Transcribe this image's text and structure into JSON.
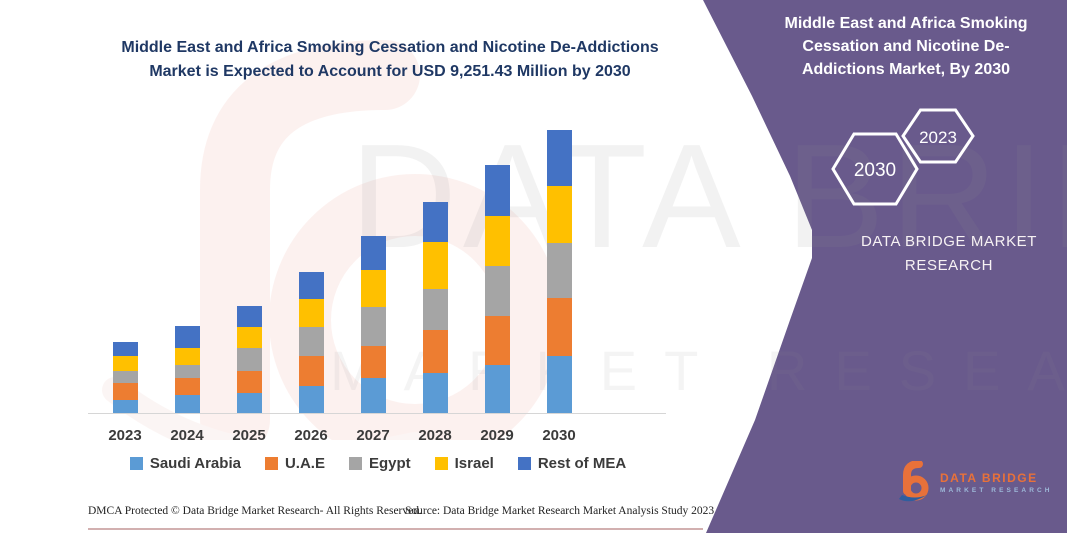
{
  "chart_data": {
    "type": "bar",
    "stacked": true,
    "title": "Middle East and Africa Smoking Cessation and Nicotine De-Addictions Market is Expected to Account for USD 9,251.43 Million by 2030",
    "title_line1": "Middle East and Africa Smoking Cessation and Nicotine De-Addictions",
    "title_line2": "Market is Expected to Account for USD 9,251.43 Million by 2030",
    "unit": "USD Million",
    "categories": [
      "2023",
      "2024",
      "2025",
      "2026",
      "2027",
      "2028",
      "2029",
      "2030"
    ],
    "series": [
      {
        "name": "Saudi Arabia",
        "color": "#5B9BD5",
        "values": [
          430,
          590,
          660,
          890,
          1150,
          1315,
          1580,
          1875
        ]
      },
      {
        "name": "U.A.E",
        "color": "#ED7D31",
        "values": [
          560,
          560,
          725,
          990,
          1055,
          1415,
          1580,
          1875
        ]
      },
      {
        "name": "Egypt",
        "color": "#A5A5A5",
        "values": [
          395,
          430,
          755,
          920,
          1250,
          1315,
          1645,
          1810
        ]
      },
      {
        "name": "Israel",
        "color": "#FFC000",
        "values": [
          495,
          560,
          660,
          920,
          1220,
          1545,
          1645,
          1875
        ]
      },
      {
        "name": "Rest of MEA",
        "color": "#4472C4",
        "values": [
          430,
          720,
          690,
          890,
          1120,
          1315,
          1645,
          1816.43
        ]
      }
    ],
    "totals": [
      2310,
      2860,
      3490,
      4610,
      5795,
      6905,
      8095,
      9251.43
    ],
    "highlight_total_2030": "USD 9,251.43 Million",
    "ylim": [
      0,
      9251.43
    ],
    "grid": false,
    "legend_position": "bottom"
  },
  "side_panel": {
    "title": "Middle East and Africa Smoking Cessation and Nicotine De-Addictions Market, By 2030",
    "hexagon_left_label": "2030",
    "hexagon_right_label": "2023",
    "brand_line1": "DATA BRIDGE MARKET",
    "brand_line2": "RESEARCH",
    "logo_name": "DATA BRIDGE",
    "logo_subtitle": "MARKET RESEARCH"
  },
  "watermark": {
    "line1": "DATA BRIDGE",
    "line2": "MARKET RESEARCH"
  },
  "footer": {
    "dmca": "DMCA Protected © Data Bridge Market Research-  All Rights Reserved.",
    "source": "Source: Data Bridge Market Research  Market Analysis Study 2023"
  },
  "colors": {
    "panel_purple": "#695a8c",
    "title_navy": "#1f3864",
    "axis_text": "#3b3b3b",
    "logo_orange": "#e8713a",
    "logo_blue": "#2f5e9e"
  }
}
